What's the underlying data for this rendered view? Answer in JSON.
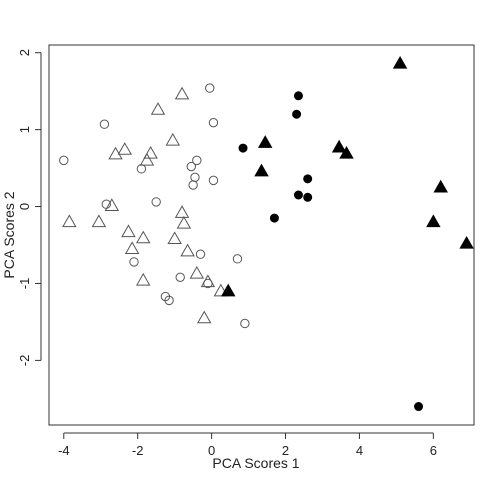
{
  "chart_data": {
    "type": "scatter",
    "title": "",
    "xlabel": "PCA Scores 1",
    "ylabel": "PCA Scores 2",
    "xlim": [
      -4.4,
      7.1
    ],
    "ylim": [
      -2.84,
      2.1
    ],
    "xticks": [
      -4,
      -2,
      0,
      2,
      4,
      6
    ],
    "yticks": [
      -2,
      -1,
      0,
      1,
      2
    ],
    "xtick_labels": [
      "-4",
      "-2",
      "0",
      "2",
      "4",
      "6"
    ],
    "ytick_labels": [
      "-2",
      "-1",
      "0",
      "1",
      "2"
    ],
    "grid": false,
    "legend": "none",
    "series": [
      {
        "marker": "circle-open",
        "color": "#555555",
        "points": [
          [
            -4.0,
            0.6
          ],
          [
            -2.9,
            1.07
          ],
          [
            -2.85,
            0.03
          ],
          [
            -2.1,
            -0.72
          ],
          [
            -1.9,
            0.49
          ],
          [
            -1.5,
            0.06
          ],
          [
            -1.25,
            -1.17
          ],
          [
            -1.15,
            -1.22
          ],
          [
            -0.85,
            -0.92
          ],
          [
            -0.55,
            0.52
          ],
          [
            -0.5,
            0.28
          ],
          [
            -0.45,
            0.38
          ],
          [
            -0.4,
            0.6
          ],
          [
            -0.3,
            -0.62
          ],
          [
            -0.05,
            1.54
          ],
          [
            0.05,
            1.09
          ],
          [
            0.05,
            0.34
          ],
          [
            0.7,
            -0.68
          ],
          [
            0.9,
            -1.52
          ],
          [
            -0.1,
            -1.0
          ]
        ]
      },
      {
        "marker": "triangle-open",
        "color": "#555555",
        "points": [
          [
            -3.85,
            -0.2
          ],
          [
            -3.05,
            -0.2
          ],
          [
            -2.7,
            0.01
          ],
          [
            -2.6,
            0.68
          ],
          [
            -2.35,
            0.74
          ],
          [
            -2.25,
            -0.33
          ],
          [
            -2.15,
            -0.55
          ],
          [
            -1.85,
            -0.41
          ],
          [
            -1.85,
            -0.96
          ],
          [
            -1.65,
            0.69
          ],
          [
            -1.75,
            0.6
          ],
          [
            -1.45,
            1.26
          ],
          [
            -1.05,
            0.86
          ],
          [
            -1.0,
            -0.42
          ],
          [
            -0.8,
            1.46
          ],
          [
            -0.8,
            -0.08
          ],
          [
            -0.75,
            -0.22
          ],
          [
            -0.65,
            -0.58
          ],
          [
            -0.4,
            -0.87
          ],
          [
            -0.2,
            -1.45
          ],
          [
            -0.1,
            -0.98
          ],
          [
            0.25,
            -1.1
          ]
        ]
      },
      {
        "marker": "circle-filled",
        "color": "#000000",
        "points": [
          [
            0.85,
            0.76
          ],
          [
            1.7,
            -0.15
          ],
          [
            2.3,
            1.2
          ],
          [
            2.35,
            1.44
          ],
          [
            2.35,
            0.15
          ],
          [
            2.6,
            0.36
          ],
          [
            2.6,
            0.12
          ],
          [
            5.6,
            -2.6
          ]
        ]
      },
      {
        "marker": "triangle-filled",
        "color": "#000000",
        "points": [
          [
            0.45,
            -1.1
          ],
          [
            1.35,
            0.46
          ],
          [
            1.45,
            0.83
          ],
          [
            3.45,
            0.77
          ],
          [
            3.65,
            0.69
          ],
          [
            5.1,
            1.86
          ],
          [
            6.0,
            -0.2
          ],
          [
            6.2,
            0.25
          ],
          [
            6.9,
            -0.48
          ]
        ]
      }
    ]
  }
}
